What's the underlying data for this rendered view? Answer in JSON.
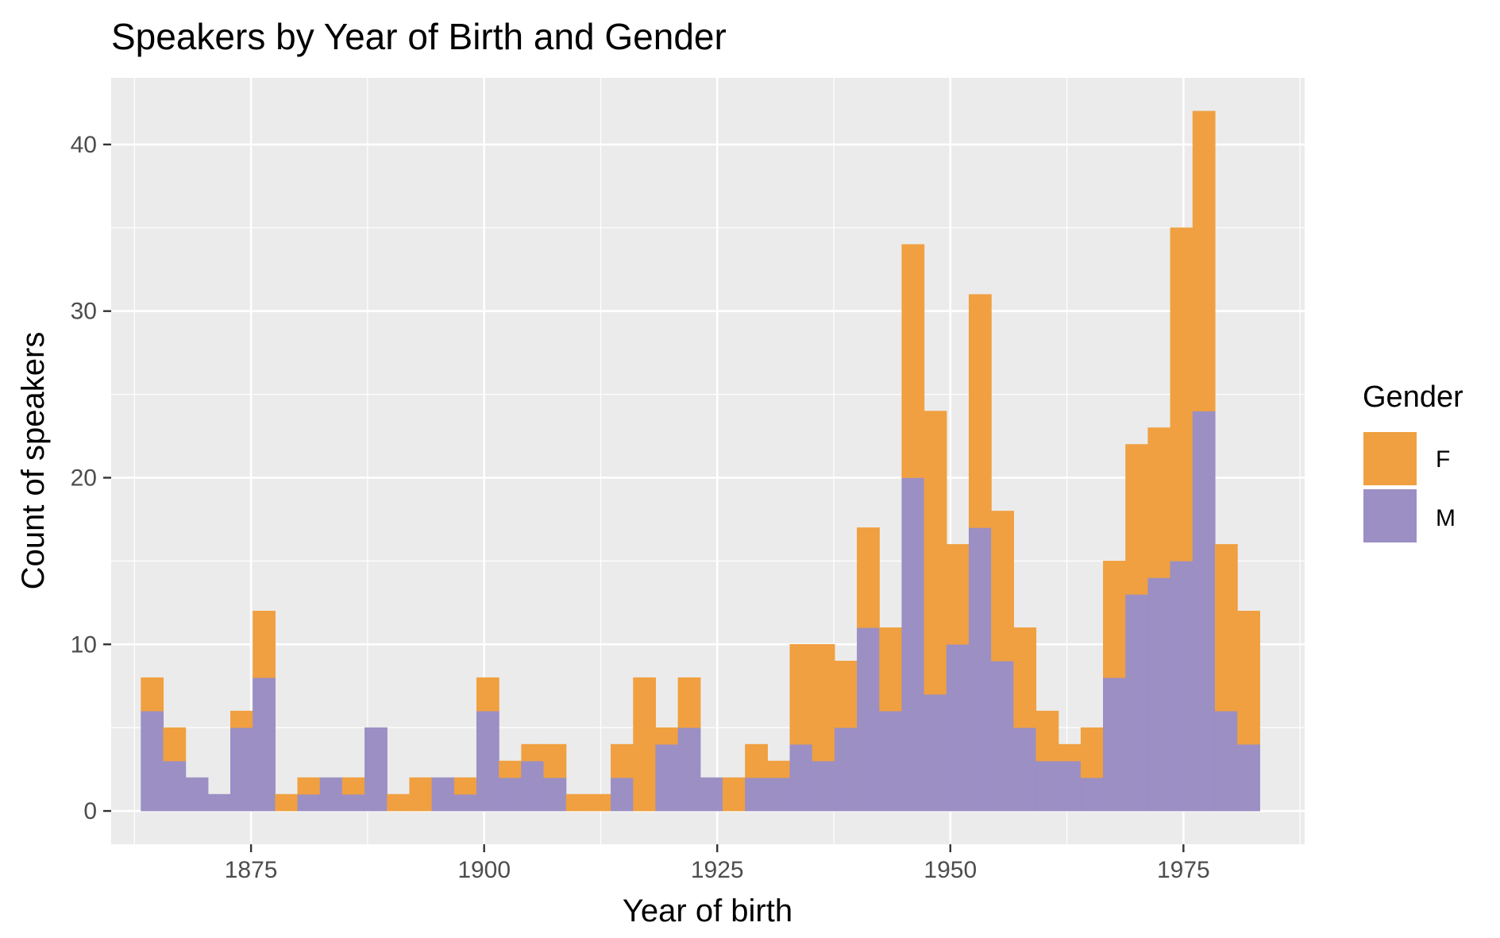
{
  "chart_data": {
    "type": "bar",
    "subtype": "stacked-histogram",
    "title": "Speakers by Year of Birth and Gender",
    "xlabel": "Year of birth",
    "ylabel": "Count of speakers",
    "xlim": [
      1860,
      1988
    ],
    "ylim": [
      -2,
      44
    ],
    "x_ticks": [
      1875,
      1900,
      1925,
      1950,
      1975
    ],
    "y_ticks": [
      0,
      10,
      20,
      30,
      40
    ],
    "grid": true,
    "bin_width": 2.4,
    "bin_start": 1863.2,
    "legend": {
      "title": "Gender",
      "position": "right",
      "entries": [
        {
          "label": "F",
          "color": "#F0A040"
        },
        {
          "label": "M",
          "color": "#9B8FC4"
        }
      ]
    },
    "series": [
      {
        "name": "M",
        "color": "#9B8FC4",
        "values": [
          6,
          3,
          2,
          1,
          5,
          8,
          0,
          1,
          2,
          1,
          5,
          0,
          0,
          2,
          1,
          6,
          2,
          3,
          2,
          0,
          0,
          2,
          0,
          4,
          5,
          2,
          0,
          2,
          2,
          4,
          3,
          5,
          11,
          6,
          20,
          7,
          10,
          17,
          9,
          5,
          3,
          3,
          2,
          8,
          13,
          14,
          15,
          24,
          6,
          4
        ]
      },
      {
        "name": "F",
        "color": "#F0A040",
        "values": [
          2,
          2,
          0,
          0,
          1,
          4,
          1,
          1,
          0,
          1,
          0,
          1,
          2,
          0,
          1,
          2,
          1,
          1,
          2,
          1,
          1,
          2,
          8,
          1,
          3,
          0,
          2,
          2,
          1,
          6,
          7,
          4,
          6,
          5,
          14,
          17,
          6,
          14,
          9,
          6,
          3,
          1,
          3,
          7,
          9,
          9,
          20,
          18,
          10,
          8
        ]
      }
    ],
    "totals": [
      8,
      5,
      2,
      1,
      6,
      12,
      1,
      2,
      2,
      2,
      5,
      1,
      2,
      2,
      2,
      8,
      3,
      4,
      4,
      1,
      1,
      4,
      8,
      5,
      8,
      2,
      2,
      4,
      3,
      10,
      10,
      9,
      17,
      11,
      34,
      24,
      16,
      31,
      18,
      11,
      6,
      4,
      5,
      15,
      22,
      23,
      35,
      42,
      16,
      12
    ]
  }
}
